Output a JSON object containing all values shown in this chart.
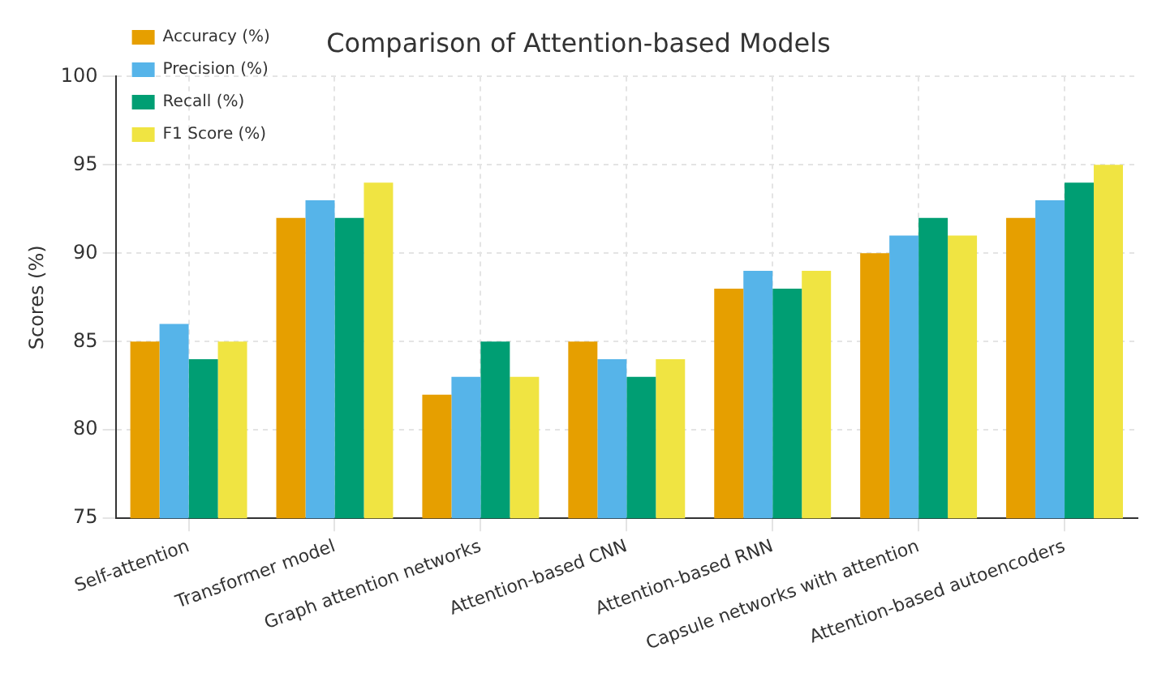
{
  "chart_data": {
    "type": "bar",
    "title": "Comparison of Attention-based Models",
    "ylabel": "Scores (%)",
    "categories": [
      "Self-attention",
      "Transformer model",
      "Graph attention networks",
      "Attention-based CNN",
      "Attention-based RNN",
      "Capsule networks with attention",
      "Attention-based autoencoders"
    ],
    "series": [
      {
        "name": "Accuracy (%)",
        "color": "#e69f00",
        "values": [
          85,
          92,
          82,
          85,
          88,
          90,
          92
        ]
      },
      {
        "name": "Precision (%)",
        "color": "#56b4e9",
        "values": [
          86,
          93,
          83,
          84,
          89,
          91,
          93
        ]
      },
      {
        "name": "Recall (%)",
        "color": "#009e73",
        "values": [
          84,
          92,
          85,
          83,
          88,
          92,
          94
        ]
      },
      {
        "name": "F1 Score (%)",
        "color": "#f0e442",
        "values": [
          85,
          94,
          83,
          84,
          89,
          91,
          95
        ]
      }
    ],
    "ylim": [
      75,
      100
    ],
    "yticks": [
      75,
      80,
      85,
      90,
      95,
      100
    ],
    "grid": true,
    "legend": "top left"
  }
}
